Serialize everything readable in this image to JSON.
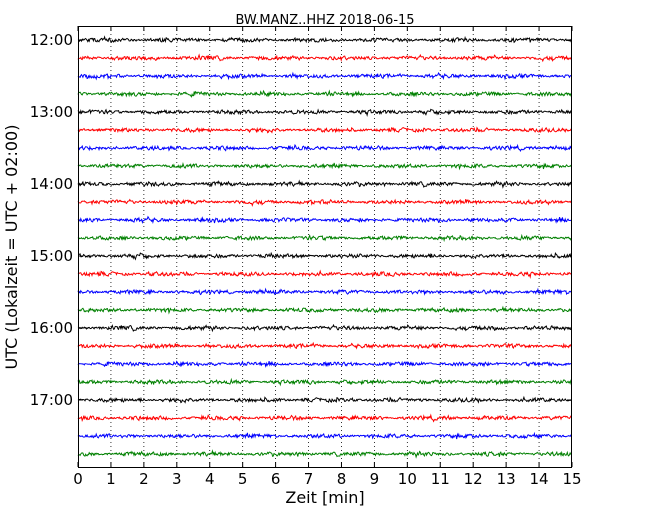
{
  "chart_data": {
    "type": "line",
    "title": "BW.MANZ..HHZ 2018-06-15",
    "xlabel": "Zeit  [min]",
    "ylabel": "UTC (Lokalzeit = UTC + 02:00)",
    "xlim": [
      0,
      15
    ],
    "x_ticks": [
      "0",
      "1",
      "2",
      "3",
      "4",
      "5",
      "6",
      "7",
      "8",
      "9",
      "10",
      "11",
      "12",
      "13",
      "14",
      "15"
    ],
    "y_ticks": [
      "12:00",
      "13:00",
      "14:00",
      "15:00",
      "16:00",
      "17:00"
    ],
    "grid": "vertical dotted lines at each minute",
    "trace_interval_minutes": 15,
    "trace_colors": [
      "#000000",
      "#ff0000",
      "#0000ff",
      "#008000"
    ],
    "traces": [
      {
        "start": "12:00"
      },
      {
        "start": "12:15"
      },
      {
        "start": "12:30"
      },
      {
        "start": "12:45"
      },
      {
        "start": "13:00"
      },
      {
        "start": "13:15"
      },
      {
        "start": "13:30"
      },
      {
        "start": "13:45"
      },
      {
        "start": "14:00"
      },
      {
        "start": "14:15"
      },
      {
        "start": "14:30"
      },
      {
        "start": "14:45"
      },
      {
        "start": "15:00"
      },
      {
        "start": "15:15"
      },
      {
        "start": "15:30"
      },
      {
        "start": "15:45"
      },
      {
        "start": "16:00"
      },
      {
        "start": "16:15"
      },
      {
        "start": "16:30"
      },
      {
        "start": "16:45"
      },
      {
        "start": "17:00"
      },
      {
        "start": "17:15"
      },
      {
        "start": "17:30"
      },
      {
        "start": "17:45"
      }
    ]
  }
}
